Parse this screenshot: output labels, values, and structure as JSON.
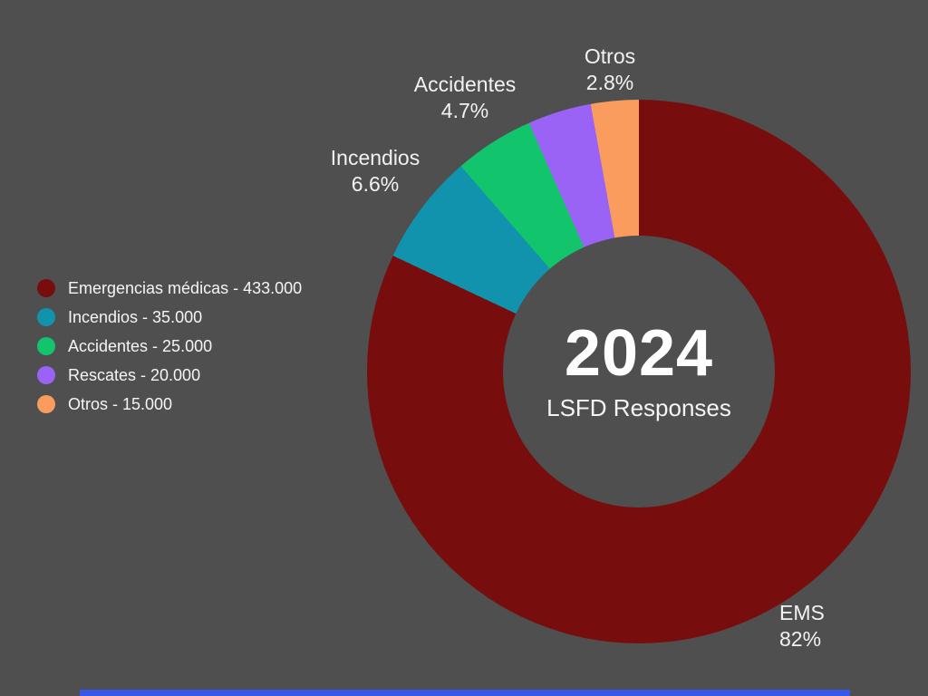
{
  "colors": {
    "background": "#4F4F4F",
    "text": "#F5F5F5",
    "title_text": "#FFFFFF",
    "scrollbar": "#3657E8"
  },
  "chart_data": {
    "type": "pie",
    "donut": true,
    "title": "2024",
    "subtitle": "LSFD Responses",
    "start_angle_deg": 0,
    "direction": "clockwise",
    "legend_position": "left",
    "series": [
      {
        "name": "Emergencias médicas",
        "callout_name": "EMS",
        "value": 433000,
        "value_label": "433.000",
        "pct_label": "82%",
        "color": "#780D0D",
        "legend_label": "Emergencias médicas - 433.000"
      },
      {
        "name": "Incendios",
        "callout_name": "Incendios",
        "value": 35000,
        "value_label": "35.000",
        "pct_label": "6.6%",
        "color": "#1193AE",
        "legend_label": "Incendios - 35.000"
      },
      {
        "name": "Accidentes",
        "callout_name": "Accidentes",
        "value": 25000,
        "value_label": "25.000",
        "pct_label": "4.7%",
        "color": "#12C46C",
        "legend_label": "Accidentes - 25.000"
      },
      {
        "name": "Rescates",
        "callout_name": "Rescates",
        "value": 20000,
        "value_label": "20.000",
        "color": "#9A63F5",
        "legend_label": "Rescates - 20.000"
      },
      {
        "name": "Otros",
        "callout_name": "Otros",
        "value": 15000,
        "value_label": "15.000",
        "pct_label": "2.8%",
        "color": "#F99C5E",
        "legend_label": "Otros - 15.000"
      }
    ]
  }
}
